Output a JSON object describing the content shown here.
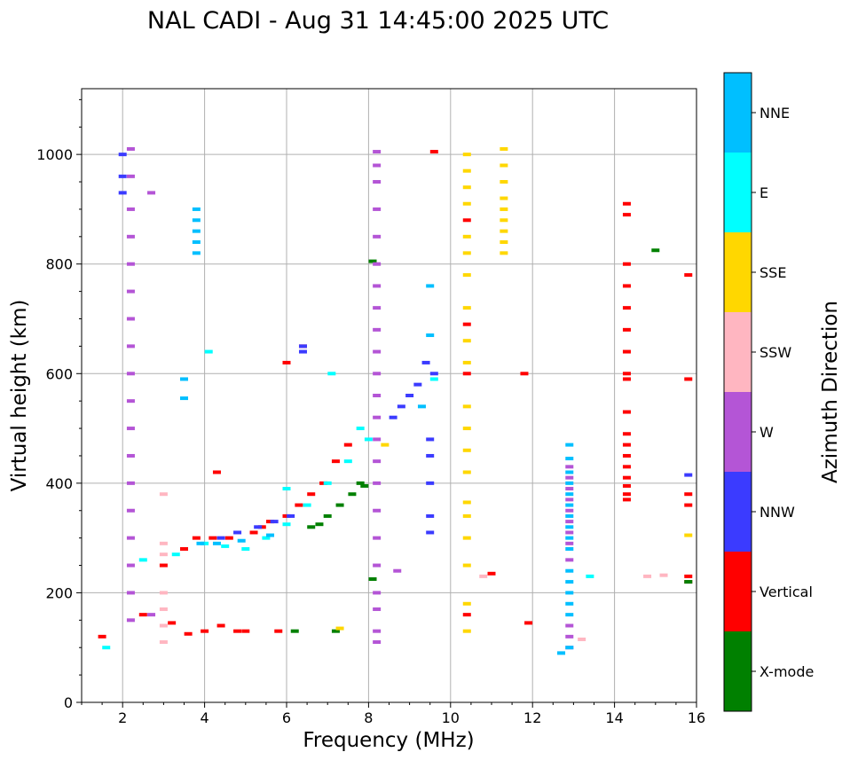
{
  "chart_data": {
    "type": "scatter",
    "title": "NAL CADI - Aug 31 14:45:00 2025 UTC",
    "xlabel": "Frequency (MHz)",
    "ylabel": "Virtual height (km)",
    "xlim": [
      1,
      16
    ],
    "ylim": [
      0,
      1120
    ],
    "xticks": [
      2,
      4,
      6,
      8,
      10,
      12,
      14,
      16
    ],
    "yticks": [
      0,
      200,
      400,
      600,
      800,
      1000
    ],
    "grid": true,
    "colorbar": {
      "label": "Azimuth Direction",
      "categories": [
        "X-mode",
        "Vertical",
        "NNW",
        "W",
        "SSW",
        "SSE",
        "E",
        "NNE"
      ],
      "colors": [
        "#008000",
        "#ff0000",
        "#3b3bff",
        "#b455d6",
        "#ffb6c1",
        "#ffd700",
        "#00ffff",
        "#00bfff"
      ]
    },
    "series": [
      {
        "name": "Vertical",
        "points": [
          [
            1.5,
            120
          ],
          [
            2.5,
            160
          ],
          [
            3.0,
            250
          ],
          [
            3.5,
            280
          ],
          [
            3.8,
            300
          ],
          [
            4.0,
            130
          ],
          [
            4.2,
            300
          ],
          [
            4.4,
            140
          ],
          [
            4.6,
            300
          ],
          [
            4.8,
            130
          ],
          [
            5.0,
            130
          ],
          [
            5.2,
            310
          ],
          [
            5.4,
            320
          ],
          [
            5.6,
            330
          ],
          [
            5.8,
            130
          ],
          [
            6.0,
            340
          ],
          [
            6.3,
            360
          ],
          [
            6.6,
            380
          ],
          [
            6.9,
            400
          ],
          [
            7.2,
            440
          ],
          [
            7.5,
            470
          ],
          [
            3.2,
            145
          ],
          [
            3.6,
            125
          ],
          [
            4.3,
            420
          ],
          [
            6.0,
            620
          ],
          [
            6.4,
            650
          ],
          [
            9.6,
            1005
          ],
          [
            10.4,
            690
          ],
          [
            10.4,
            880
          ],
          [
            10.4,
            600
          ],
          [
            10.4,
            160
          ],
          [
            11.0,
            235
          ],
          [
            11.8,
            600
          ],
          [
            11.9,
            145
          ],
          [
            14.3,
            370
          ],
          [
            14.3,
            380
          ],
          [
            14.3,
            395
          ],
          [
            14.3,
            410
          ],
          [
            14.3,
            430
          ],
          [
            14.3,
            450
          ],
          [
            14.3,
            470
          ],
          [
            14.3,
            490
          ],
          [
            14.3,
            530
          ],
          [
            14.3,
            590
          ],
          [
            14.3,
            600
          ],
          [
            14.3,
            640
          ],
          [
            14.3,
            680
          ],
          [
            14.3,
            720
          ],
          [
            14.3,
            760
          ],
          [
            14.3,
            800
          ],
          [
            14.3,
            890
          ],
          [
            14.3,
            910
          ],
          [
            15.8,
            780
          ],
          [
            15.8,
            590
          ],
          [
            15.8,
            380
          ],
          [
            15.8,
            360
          ],
          [
            15.8,
            230
          ],
          [
            15.8,
            220
          ]
        ]
      },
      {
        "name": "X-mode",
        "points": [
          [
            6.2,
            130
          ],
          [
            6.6,
            320
          ],
          [
            7.0,
            340
          ],
          [
            7.3,
            360
          ],
          [
            7.6,
            380
          ],
          [
            7.8,
            400
          ],
          [
            7.9,
            395
          ],
          [
            7.2,
            130
          ],
          [
            6.8,
            325
          ],
          [
            8.1,
            805
          ],
          [
            8.1,
            225
          ],
          [
            15.0,
            825
          ],
          [
            15.8,
            220
          ]
        ]
      },
      {
        "name": "NNW",
        "points": [
          [
            2.0,
            1000
          ],
          [
            2.0,
            960
          ],
          [
            2.0,
            930
          ],
          [
            4.4,
            300
          ],
          [
            4.8,
            310
          ],
          [
            5.3,
            320
          ],
          [
            5.7,
            330
          ],
          [
            6.1,
            340
          ],
          [
            6.4,
            650
          ],
          [
            6.4,
            640
          ],
          [
            8.6,
            520
          ],
          [
            8.8,
            540
          ],
          [
            9.0,
            560
          ],
          [
            9.2,
            580
          ],
          [
            9.4,
            620
          ],
          [
            9.6,
            600
          ],
          [
            9.5,
            340
          ],
          [
            9.5,
            310
          ],
          [
            9.5,
            400
          ],
          [
            9.5,
            450
          ],
          [
            9.5,
            480
          ],
          [
            15.8,
            415
          ]
        ]
      },
      {
        "name": "W",
        "points": [
          [
            2.2,
            1010
          ],
          [
            2.2,
            960
          ],
          [
            2.2,
            900
          ],
          [
            2.2,
            850
          ],
          [
            2.2,
            800
          ],
          [
            2.2,
            750
          ],
          [
            2.2,
            700
          ],
          [
            2.2,
            650
          ],
          [
            2.2,
            600
          ],
          [
            2.2,
            550
          ],
          [
            2.2,
            500
          ],
          [
            2.2,
            450
          ],
          [
            2.2,
            400
          ],
          [
            2.2,
            350
          ],
          [
            2.2,
            300
          ],
          [
            2.2,
            250
          ],
          [
            2.2,
            200
          ],
          [
            2.2,
            150
          ],
          [
            2.7,
            160
          ],
          [
            2.7,
            930
          ],
          [
            8.2,
            1005
          ],
          [
            8.2,
            980
          ],
          [
            8.2,
            950
          ],
          [
            8.2,
            900
          ],
          [
            8.2,
            850
          ],
          [
            8.2,
            800
          ],
          [
            8.2,
            760
          ],
          [
            8.2,
            720
          ],
          [
            8.2,
            680
          ],
          [
            8.2,
            640
          ],
          [
            8.2,
            600
          ],
          [
            8.2,
            560
          ],
          [
            8.2,
            520
          ],
          [
            8.2,
            480
          ],
          [
            8.2,
            440
          ],
          [
            8.2,
            400
          ],
          [
            8.2,
            350
          ],
          [
            8.2,
            300
          ],
          [
            8.2,
            250
          ],
          [
            8.2,
            200
          ],
          [
            8.2,
            170
          ],
          [
            8.2,
            130
          ],
          [
            8.2,
            110
          ],
          [
            12.9,
            100
          ],
          [
            12.9,
            120
          ],
          [
            12.9,
            140
          ],
          [
            12.9,
            260
          ],
          [
            12.9,
            290
          ],
          [
            12.9,
            310
          ],
          [
            12.9,
            330
          ],
          [
            12.9,
            350
          ],
          [
            12.9,
            370
          ],
          [
            12.9,
            390
          ],
          [
            12.9,
            410
          ],
          [
            12.9,
            430
          ],
          [
            8.7,
            240
          ]
        ]
      },
      {
        "name": "SSW",
        "points": [
          [
            3.0,
            200
          ],
          [
            3.0,
            170
          ],
          [
            3.0,
            140
          ],
          [
            3.0,
            110
          ],
          [
            3.0,
            290
          ],
          [
            3.0,
            270
          ],
          [
            3.0,
            380
          ],
          [
            10.8,
            230
          ],
          [
            13.2,
            115
          ],
          [
            14.8,
            230
          ],
          [
            15.2,
            232
          ]
        ]
      },
      {
        "name": "SSE",
        "points": [
          [
            10.4,
            1000
          ],
          [
            10.4,
            970
          ],
          [
            10.4,
            940
          ],
          [
            10.4,
            910
          ],
          [
            10.4,
            850
          ],
          [
            10.4,
            820
          ],
          [
            10.4,
            780
          ],
          [
            10.4,
            720
          ],
          [
            10.4,
            660
          ],
          [
            10.4,
            620
          ],
          [
            10.4,
            540
          ],
          [
            10.4,
            500
          ],
          [
            10.4,
            460
          ],
          [
            10.4,
            420
          ],
          [
            10.4,
            365
          ],
          [
            10.4,
            340
          ],
          [
            10.4,
            300
          ],
          [
            10.4,
            250
          ],
          [
            10.4,
            180
          ],
          [
            10.4,
            130
          ],
          [
            11.3,
            1010
          ],
          [
            11.3,
            980
          ],
          [
            11.3,
            950
          ],
          [
            11.3,
            920
          ],
          [
            11.3,
            900
          ],
          [
            11.3,
            880
          ],
          [
            11.3,
            860
          ],
          [
            11.3,
            840
          ],
          [
            11.3,
            820
          ],
          [
            15.8,
            305
          ],
          [
            7.3,
            135
          ],
          [
            8.4,
            470
          ]
        ]
      },
      {
        "name": "E",
        "points": [
          [
            1.6,
            100
          ],
          [
            2.5,
            260
          ],
          [
            3.3,
            270
          ],
          [
            4.0,
            290
          ],
          [
            4.5,
            285
          ],
          [
            5.0,
            280
          ],
          [
            5.5,
            300
          ],
          [
            6.0,
            325
          ],
          [
            6.5,
            360
          ],
          [
            7.0,
            400
          ],
          [
            7.5,
            440
          ],
          [
            7.8,
            500
          ],
          [
            8.0,
            480
          ],
          [
            7.1,
            600
          ],
          [
            6.0,
            390
          ],
          [
            4.1,
            640
          ],
          [
            13.4,
            230
          ],
          [
            9.6,
            590
          ]
        ]
      },
      {
        "name": "NNE",
        "points": [
          [
            3.8,
            900
          ],
          [
            3.8,
            880
          ],
          [
            3.8,
            860
          ],
          [
            3.8,
            840
          ],
          [
            3.8,
            820
          ],
          [
            3.9,
            290
          ],
          [
            4.3,
            290
          ],
          [
            4.9,
            295
          ],
          [
            5.6,
            305
          ],
          [
            9.3,
            540
          ],
          [
            9.5,
            670
          ],
          [
            9.5,
            760
          ],
          [
            12.9,
            470
          ],
          [
            12.9,
            445
          ],
          [
            12.9,
            420
          ],
          [
            12.9,
            400
          ],
          [
            12.9,
            380
          ],
          [
            12.9,
            360
          ],
          [
            12.9,
            340
          ],
          [
            12.9,
            320
          ],
          [
            12.9,
            300
          ],
          [
            12.9,
            280
          ],
          [
            12.9,
            240
          ],
          [
            12.9,
            220
          ],
          [
            12.9,
            200
          ],
          [
            12.9,
            180
          ],
          [
            12.9,
            160
          ],
          [
            12.9,
            100
          ],
          [
            12.7,
            90
          ],
          [
            3.5,
            590
          ],
          [
            3.5,
            555
          ]
        ]
      }
    ]
  }
}
